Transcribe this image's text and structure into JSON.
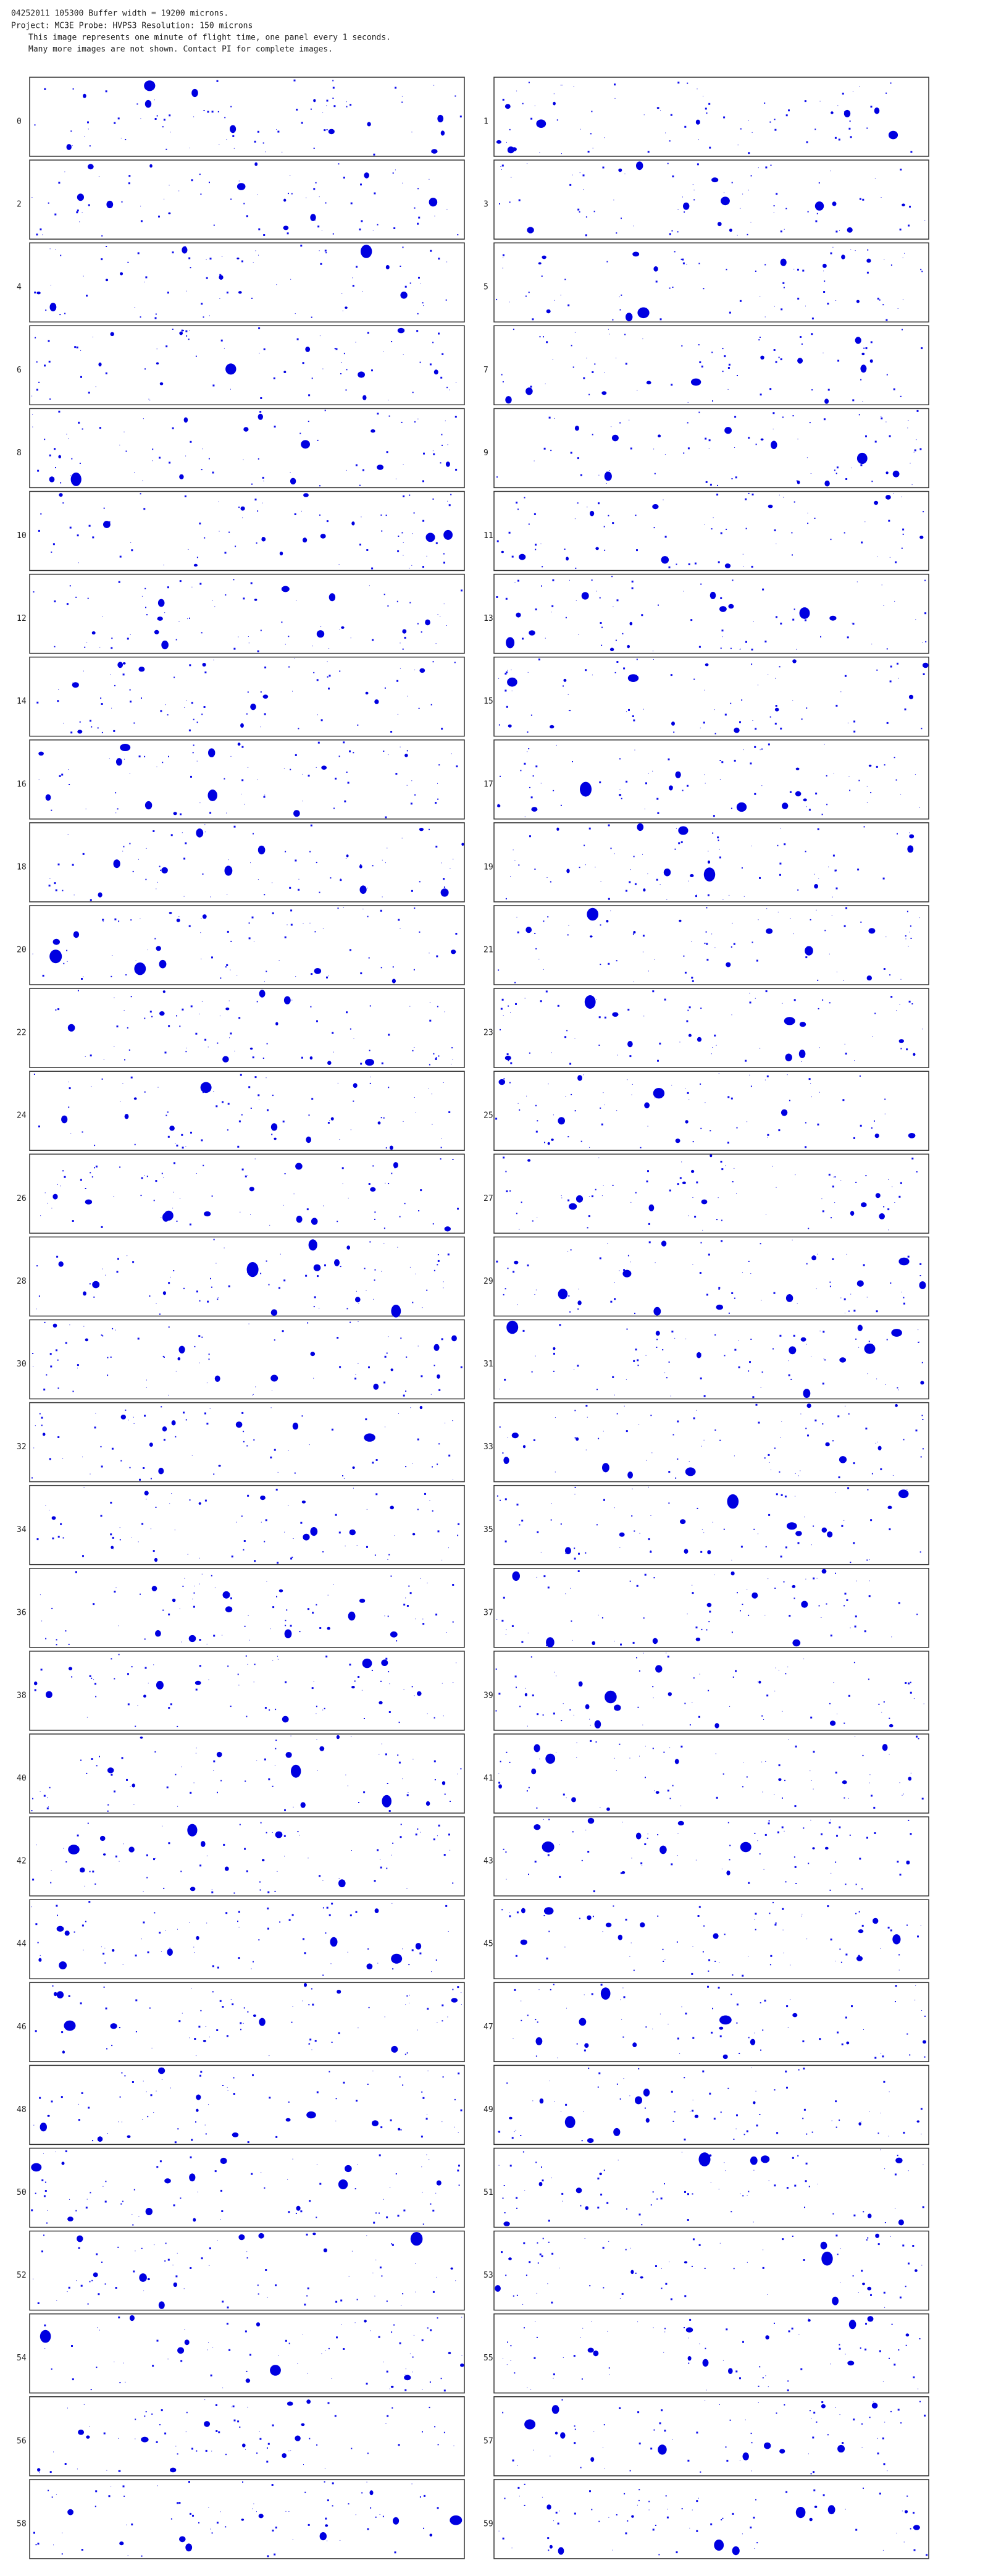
{
  "header": {
    "lines": [
      "04252011 105300  Buffer width = 19200 microns.",
      "Project: MC3E  Probe: HVPS3   Resolution: 150 microns",
      "This image represents one minute of flight time, one panel every 1 seconds.",
      "Many more images are not shown.  Contact PI for complete images."
    ]
  },
  "panels": {
    "labels": [
      "0",
      "1",
      "2",
      "3",
      "4",
      "5",
      "6",
      "7",
      "8",
      "9",
      "10",
      "11",
      "12",
      "13",
      "14",
      "15",
      "16",
      "17",
      "18",
      "19",
      "20",
      "21",
      "22",
      "23",
      "24",
      "25",
      "26",
      "27",
      "28",
      "29",
      "30",
      "31",
      "32",
      "33",
      "34",
      "35",
      "36",
      "37",
      "38",
      "39",
      "40",
      "41",
      "42",
      "43",
      "44",
      "45",
      "46",
      "47",
      "48",
      "49",
      "50",
      "51",
      "52",
      "53",
      "54",
      "55",
      "56",
      "57",
      "58",
      "59"
    ]
  }
}
